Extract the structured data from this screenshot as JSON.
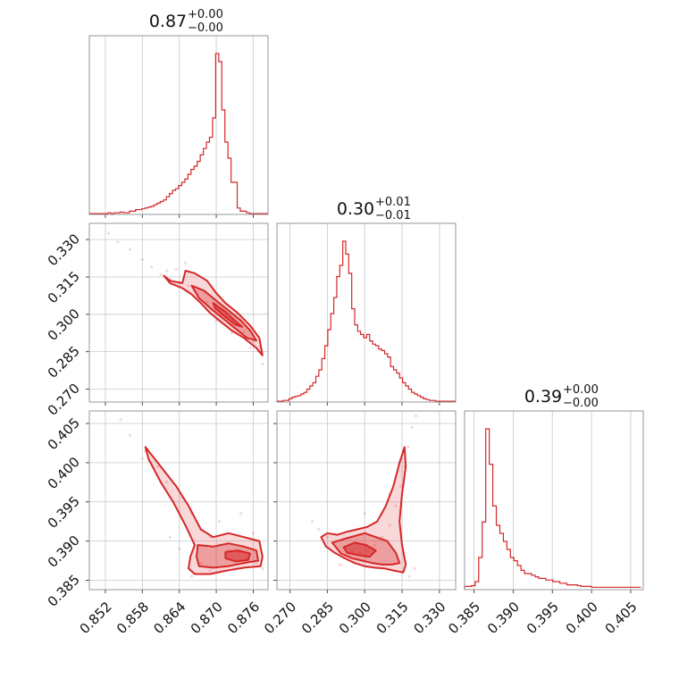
{
  "figure": {
    "type": "corner-plot",
    "accent_color": "#d62728",
    "grid": true
  },
  "chart_data": [
    {
      "type": "histogram",
      "panel": "diag-0",
      "title": {
        "value": "0.87",
        "upper": "+0.00",
        "lower": "−0.00"
      },
      "xlim": [
        0.8494,
        0.8784
      ],
      "xgrid": [
        0.852,
        0.858,
        0.864,
        0.87,
        0.876
      ],
      "xticklabels": [
        "0.852",
        "0.858",
        "0.864",
        "0.870",
        "0.876"
      ],
      "ylim": [
        0,
        1.0
      ],
      "bins_start": 0.8494,
      "bins_width": 0.0005,
      "values": [
        0.005,
        0.005,
        0.005,
        0.005,
        0.005,
        0.005,
        0.01,
        0.005,
        0.01,
        0.01,
        0.015,
        0.01,
        0.01,
        0.02,
        0.02,
        0.03,
        0.03,
        0.035,
        0.04,
        0.045,
        0.05,
        0.06,
        0.07,
        0.08,
        0.09,
        0.11,
        0.13,
        0.15,
        0.16,
        0.18,
        0.2,
        0.22,
        0.25,
        0.28,
        0.3,
        0.33,
        0.37,
        0.41,
        0.45,
        0.48,
        0.6,
        1.0,
        0.95,
        0.65,
        0.45,
        0.35,
        0.2,
        0.2,
        0.04,
        0.02,
        0.02,
        0.01,
        0.005,
        0.005,
        0.005,
        0.005,
        0.005,
        0.005
      ]
    },
    {
      "type": "histogram",
      "panel": "diag-1",
      "title": {
        "value": "0.30",
        "upper": "+0.01",
        "lower": "−0.01"
      },
      "xlim": [
        0.2648,
        0.3365
      ],
      "xgrid": [
        0.27,
        0.285,
        0.3,
        0.315,
        0.33
      ],
      "xticklabels": [
        "0.270",
        "0.285",
        "0.300",
        "0.315",
        "0.330"
      ],
      "ylim": [
        0,
        1.0
      ],
      "bins_start": 0.2648,
      "bins_width": 0.0012,
      "values": [
        0.005,
        0.005,
        0.01,
        0.01,
        0.02,
        0.03,
        0.035,
        0.04,
        0.05,
        0.06,
        0.08,
        0.1,
        0.12,
        0.16,
        0.2,
        0.27,
        0.35,
        0.45,
        0.55,
        0.65,
        0.78,
        0.85,
        1.0,
        0.92,
        0.8,
        0.58,
        0.48,
        0.44,
        0.42,
        0.4,
        0.42,
        0.38,
        0.36,
        0.35,
        0.33,
        0.32,
        0.3,
        0.28,
        0.22,
        0.2,
        0.18,
        0.15,
        0.12,
        0.1,
        0.08,
        0.06,
        0.05,
        0.04,
        0.03,
        0.02,
        0.015,
        0.01,
        0.01,
        0.005,
        0.005,
        0.005,
        0.005,
        0.005,
        0.005,
        0.005
      ]
    },
    {
      "type": "histogram",
      "panel": "diag-2",
      "title": {
        "value": "0.39",
        "upper": "+0.00",
        "lower": "−0.00"
      },
      "xlim": [
        0.3838,
        0.4066
      ],
      "xgrid": [
        0.385,
        0.39,
        0.395,
        0.4,
        0.405
      ],
      "xticklabels": [
        "0.385",
        "0.390",
        "0.395",
        "0.400",
        "0.405"
      ],
      "ylim": [
        0,
        1.0
      ],
      "bins_start": 0.3838,
      "bins_width": 0.00045,
      "values": [
        0.02,
        0.02,
        0.025,
        0.05,
        0.2,
        0.42,
        1.0,
        0.78,
        0.52,
        0.4,
        0.35,
        0.3,
        0.25,
        0.2,
        0.18,
        0.15,
        0.12,
        0.1,
        0.1,
        0.09,
        0.08,
        0.07,
        0.07,
        0.06,
        0.06,
        0.05,
        0.05,
        0.04,
        0.04,
        0.03,
        0.03,
        0.03,
        0.025,
        0.02,
        0.02,
        0.02,
        0.015,
        0.015,
        0.015,
        0.015,
        0.015,
        0.015,
        0.015,
        0.015,
        0.015,
        0.015,
        0.015,
        0.015,
        0.015,
        0.015
      ]
    },
    {
      "type": "contour",
      "panel": "pair-1-0",
      "xlim": [
        0.8494,
        0.8784
      ],
      "ylim": [
        0.2648,
        0.3365
      ],
      "xgrid": [
        0.852,
        0.858,
        0.864,
        0.87,
        0.876
      ],
      "ygrid": [
        0.27,
        0.285,
        0.3,
        0.315,
        0.33
      ],
      "yticklabels": [
        "0.270",
        "0.285",
        "0.300",
        "0.315",
        "0.330"
      ],
      "scatter": [
        [
          0.8525,
          0.3325
        ],
        [
          0.854,
          0.329
        ],
        [
          0.856,
          0.326
        ],
        [
          0.858,
          0.322
        ],
        [
          0.8595,
          0.319
        ],
        [
          0.861,
          0.316
        ],
        [
          0.8625,
          0.314
        ],
        [
          0.864,
          0.311
        ],
        [
          0.8655,
          0.3115
        ],
        [
          0.867,
          0.308
        ],
        [
          0.8685,
          0.305
        ],
        [
          0.87,
          0.302
        ],
        [
          0.8715,
          0.299
        ],
        [
          0.873,
          0.296
        ],
        [
          0.8745,
          0.293
        ],
        [
          0.876,
          0.289
        ],
        [
          0.877,
          0.285
        ],
        [
          0.8775,
          0.28
        ],
        [
          0.8635,
          0.318
        ],
        [
          0.865,
          0.3205
        ],
        [
          0.862,
          0.3175
        ],
        [
          0.87,
          0.2975
        ],
        [
          0.8725,
          0.2925
        ],
        [
          0.8755,
          0.2865
        ]
      ],
      "contours": [
        {
          "level": "outer",
          "points": [
            [
              0.8615,
              0.3155
            ],
            [
              0.8625,
              0.3135
            ],
            [
              0.8645,
              0.3125
            ],
            [
              0.865,
              0.3175
            ],
            [
              0.8665,
              0.3165
            ],
            [
              0.8685,
              0.3135
            ],
            [
              0.87,
              0.3085
            ],
            [
              0.8715,
              0.3045
            ],
            [
              0.8735,
              0.3005
            ],
            [
              0.8755,
              0.2955
            ],
            [
              0.877,
              0.2905
            ],
            [
              0.8775,
              0.2835
            ],
            [
              0.8765,
              0.2865
            ],
            [
              0.8745,
              0.2905
            ],
            [
              0.8725,
              0.2935
            ],
            [
              0.8705,
              0.2975
            ],
            [
              0.869,
              0.3005
            ],
            [
              0.8675,
              0.3045
            ],
            [
              0.866,
              0.308
            ],
            [
              0.8645,
              0.3105
            ],
            [
              0.8625,
              0.3125
            ]
          ]
        },
        {
          "level": "middle",
          "points": [
            [
              0.866,
              0.3115
            ],
            [
              0.868,
              0.3095
            ],
            [
              0.87,
              0.3055
            ],
            [
              0.872,
              0.3015
            ],
            [
              0.874,
              0.2975
            ],
            [
              0.8755,
              0.2935
            ],
            [
              0.8765,
              0.2895
            ],
            [
              0.875,
              0.2905
            ],
            [
              0.873,
              0.2945
            ],
            [
              0.871,
              0.2985
            ],
            [
              0.869,
              0.3025
            ],
            [
              0.8672,
              0.3065
            ]
          ]
        },
        {
          "level": "inner",
          "points": [
            [
              0.8695,
              0.3045
            ],
            [
              0.8715,
              0.301
            ],
            [
              0.873,
              0.2975
            ],
            [
              0.8742,
              0.295
            ],
            [
              0.873,
              0.296
            ],
            [
              0.8712,
              0.2995
            ],
            [
              0.8698,
              0.3025
            ]
          ]
        }
      ]
    },
    {
      "type": "contour",
      "panel": "pair-2-0",
      "xlim": [
        0.8494,
        0.8784
      ],
      "ylim": [
        0.3838,
        0.4066
      ],
      "xgrid": [
        0.852,
        0.858,
        0.864,
        0.87,
        0.876
      ],
      "ygrid": [
        0.385,
        0.39,
        0.395,
        0.4,
        0.405
      ],
      "yticklabels": [
        "0.385",
        "0.390",
        "0.395",
        "0.400",
        "0.405"
      ],
      "scatter": [
        [
          0.8545,
          0.4055
        ],
        [
          0.856,
          0.4035
        ],
        [
          0.8585,
          0.4015
        ],
        [
          0.8605,
          0.3995
        ],
        [
          0.862,
          0.3975
        ],
        [
          0.8645,
          0.3955
        ],
        [
          0.866,
          0.3935
        ],
        [
          0.8675,
          0.3915
        ],
        [
          0.869,
          0.3905
        ],
        [
          0.8705,
          0.3895
        ],
        [
          0.872,
          0.3888
        ],
        [
          0.8735,
          0.3885
        ],
        [
          0.875,
          0.3878
        ],
        [
          0.8765,
          0.3872
        ],
        [
          0.8775,
          0.3865
        ],
        [
          0.8675,
          0.3872
        ],
        [
          0.869,
          0.3862
        ],
        [
          0.864,
          0.389
        ],
        [
          0.8625,
          0.3905
        ],
        [
          0.866,
          0.3855
        ],
        [
          0.8705,
          0.3925
        ],
        [
          0.874,
          0.3935
        ],
        [
          0.876,
          0.391
        ],
        [
          0.858,
          0.4005
        ]
      ],
      "contours": [
        {
          "level": "outer",
          "points": [
            [
              0.8585,
              0.402
            ],
            [
              0.861,
              0.3995
            ],
            [
              0.8635,
              0.397
            ],
            [
              0.8655,
              0.3945
            ],
            [
              0.8675,
              0.3915
            ],
            [
              0.8695,
              0.3905
            ],
            [
              0.872,
              0.391
            ],
            [
              0.8745,
              0.3905
            ],
            [
              0.877,
              0.39
            ],
            [
              0.8775,
              0.388
            ],
            [
              0.8772,
              0.3868
            ],
            [
              0.8745,
              0.3866
            ],
            [
              0.8715,
              0.3862
            ],
            [
              0.869,
              0.3858
            ],
            [
              0.8665,
              0.3858
            ],
            [
              0.8655,
              0.3865
            ],
            [
              0.8658,
              0.388
            ],
            [
              0.8665,
              0.3895
            ],
            [
              0.865,
              0.392
            ],
            [
              0.863,
              0.395
            ],
            [
              0.861,
              0.3975
            ],
            [
              0.859,
              0.4005
            ]
          ]
        },
        {
          "level": "middle",
          "points": [
            [
              0.867,
              0.3895
            ],
            [
              0.8695,
              0.3893
            ],
            [
              0.872,
              0.3897
            ],
            [
              0.8745,
              0.3893
            ],
            [
              0.8765,
              0.3888
            ],
            [
              0.8768,
              0.3875
            ],
            [
              0.8745,
              0.3872
            ],
            [
              0.872,
              0.3868
            ],
            [
              0.8695,
              0.3866
            ],
            [
              0.8672,
              0.3868
            ],
            [
              0.8668,
              0.388
            ]
          ]
        },
        {
          "level": "inner",
          "points": [
            [
              0.8715,
              0.3886
            ],
            [
              0.8735,
              0.3888
            ],
            [
              0.8755,
              0.3884
            ],
            [
              0.8752,
              0.3876
            ],
            [
              0.8732,
              0.3874
            ],
            [
              0.8715,
              0.3878
            ]
          ]
        }
      ]
    },
    {
      "type": "contour",
      "panel": "pair-2-1",
      "xlim": [
        0.2648,
        0.3365
      ],
      "ylim": [
        0.3838,
        0.4066
      ],
      "xgrid": [
        0.27,
        0.285,
        0.3,
        0.315,
        0.33
      ],
      "ygrid": [
        0.385,
        0.39,
        0.395,
        0.4,
        0.405
      ],
      "xticklabels": [
        "0.270",
        "0.285",
        "0.300",
        "0.315",
        "0.330"
      ],
      "scatter": [
        [
          0.285,
          0.3905
        ],
        [
          0.2885,
          0.39
        ],
        [
          0.292,
          0.3892
        ],
        [
          0.295,
          0.3888
        ],
        [
          0.298,
          0.3885
        ],
        [
          0.301,
          0.3888
        ],
        [
          0.304,
          0.3895
        ],
        [
          0.307,
          0.3905
        ],
        [
          0.31,
          0.392
        ],
        [
          0.3125,
          0.3945
        ],
        [
          0.3145,
          0.397
        ],
        [
          0.316,
          0.3995
        ],
        [
          0.3175,
          0.402
        ],
        [
          0.319,
          0.4045
        ],
        [
          0.3205,
          0.406
        ],
        [
          0.2815,
          0.3915
        ],
        [
          0.279,
          0.3925
        ],
        [
          0.315,
          0.386
        ],
        [
          0.318,
          0.3855
        ],
        [
          0.3,
          0.3935
        ],
        [
          0.307,
          0.3935
        ],
        [
          0.29,
          0.387
        ],
        [
          0.32,
          0.3865
        ],
        [
          0.31,
          0.396
        ]
      ],
      "contours": [
        {
          "level": "outer",
          "points": [
            [
              0.2825,
              0.3905
            ],
            [
              0.285,
              0.391
            ],
            [
              0.289,
              0.3908
            ],
            [
              0.293,
              0.3912
            ],
            [
              0.297,
              0.3915
            ],
            [
              0.301,
              0.3918
            ],
            [
              0.305,
              0.3925
            ],
            [
              0.3085,
              0.3945
            ],
            [
              0.3115,
              0.397
            ],
            [
              0.314,
              0.4
            ],
            [
              0.316,
              0.402
            ],
            [
              0.3165,
              0.3995
            ],
            [
              0.315,
              0.396
            ],
            [
              0.314,
              0.3925
            ],
            [
              0.315,
              0.3895
            ],
            [
              0.3165,
              0.387
            ],
            [
              0.3155,
              0.386
            ],
            [
              0.312,
              0.3862
            ],
            [
              0.308,
              0.3865
            ],
            [
              0.304,
              0.3866
            ],
            [
              0.3,
              0.3868
            ],
            [
              0.296,
              0.3872
            ],
            [
              0.292,
              0.3878
            ],
            [
              0.288,
              0.3885
            ],
            [
              0.2845,
              0.3893
            ]
          ]
        },
        {
          "level": "middle",
          "points": [
            [
              0.287,
              0.3898
            ],
            [
              0.291,
              0.3902
            ],
            [
              0.2955,
              0.3906
            ],
            [
              0.3,
              0.391
            ],
            [
              0.3045,
              0.3905
            ],
            [
              0.309,
              0.39
            ],
            [
              0.3125,
              0.3885
            ],
            [
              0.314,
              0.3872
            ],
            [
              0.311,
              0.387
            ],
            [
              0.307,
              0.387
            ],
            [
              0.303,
              0.3872
            ],
            [
              0.299,
              0.3875
            ],
            [
              0.295,
              0.3878
            ],
            [
              0.2905,
              0.3884
            ]
          ]
        },
        {
          "level": "inner",
          "points": [
            [
              0.2915,
              0.3892
            ],
            [
              0.296,
              0.3898
            ],
            [
              0.3005,
              0.3895
            ],
            [
              0.3045,
              0.3888
            ],
            [
              0.302,
              0.388
            ],
            [
              0.2975,
              0.3882
            ],
            [
              0.293,
              0.3885
            ]
          ]
        }
      ]
    }
  ]
}
